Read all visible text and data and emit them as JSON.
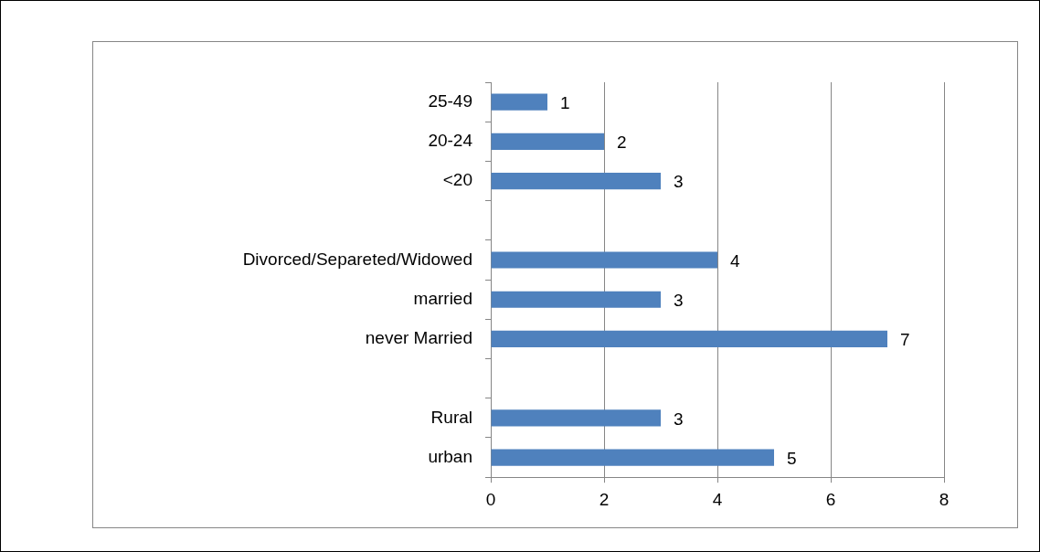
{
  "chart_data": {
    "type": "bar",
    "orientation": "horizontal",
    "categories": [
      "25-49",
      "20-24",
      "<20",
      null,
      "Divorced/Separeted/Widowed",
      "married",
      "never Married",
      null,
      "Rural",
      "urban"
    ],
    "values": [
      1,
      2,
      3,
      null,
      4,
      3,
      7,
      null,
      3,
      5
    ],
    "color": "#4f81bd",
    "xlim": [
      0,
      8
    ],
    "xticks": [
      0,
      2,
      4,
      6,
      8
    ],
    "grid": "x",
    "data_labels": true,
    "legend": false
  }
}
